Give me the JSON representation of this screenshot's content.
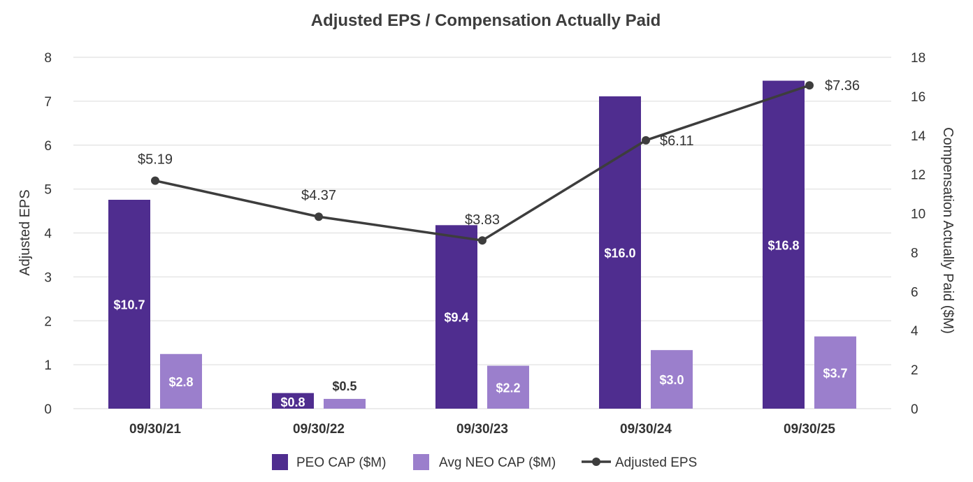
{
  "chart_data": {
    "type": "bar",
    "title": "Adjusted EPS / Compensation Actually Paid",
    "categories": [
      "09/30/21",
      "09/30/22",
      "09/30/23",
      "09/30/24",
      "09/30/25"
    ],
    "series": [
      {
        "name": "PEO CAP ($M)",
        "kind": "bar",
        "axis": "right",
        "color": "#4f2d8f",
        "values": [
          10.7,
          0.8,
          9.4,
          16.0,
          16.8
        ],
        "labels": [
          "$10.7",
          "$0.8",
          "$9.4",
          "$16.0",
          "$16.8"
        ]
      },
      {
        "name": "Avg NEO CAP ($M)",
        "kind": "bar",
        "axis": "right",
        "color": "#9b7fcc",
        "values": [
          2.8,
          0.5,
          2.2,
          3.0,
          3.7
        ],
        "labels": [
          "$2.8",
          "$0.5",
          "$2.2",
          "$3.0",
          "$3.7"
        ]
      },
      {
        "name": "Adjusted EPS",
        "kind": "line",
        "axis": "left",
        "color": "#3d3d3d",
        "values": [
          5.19,
          4.37,
          3.83,
          6.11,
          7.36
        ],
        "labels": [
          "$5.19",
          "$4.37",
          "$3.83",
          "$6.11",
          "$7.36"
        ]
      }
    ],
    "ylabel": "Adjusted EPS",
    "ylim": [
      0,
      8
    ],
    "yticks": [
      0,
      1,
      2,
      3,
      4,
      5,
      6,
      7,
      8
    ],
    "y2label": "Compensation Actually Paid ($M)",
    "y2lim": [
      0,
      18
    ],
    "y2ticks": [
      0,
      2,
      4,
      6,
      8,
      10,
      12,
      14,
      16,
      18
    ],
    "grid": true,
    "legend": "bottom"
  }
}
